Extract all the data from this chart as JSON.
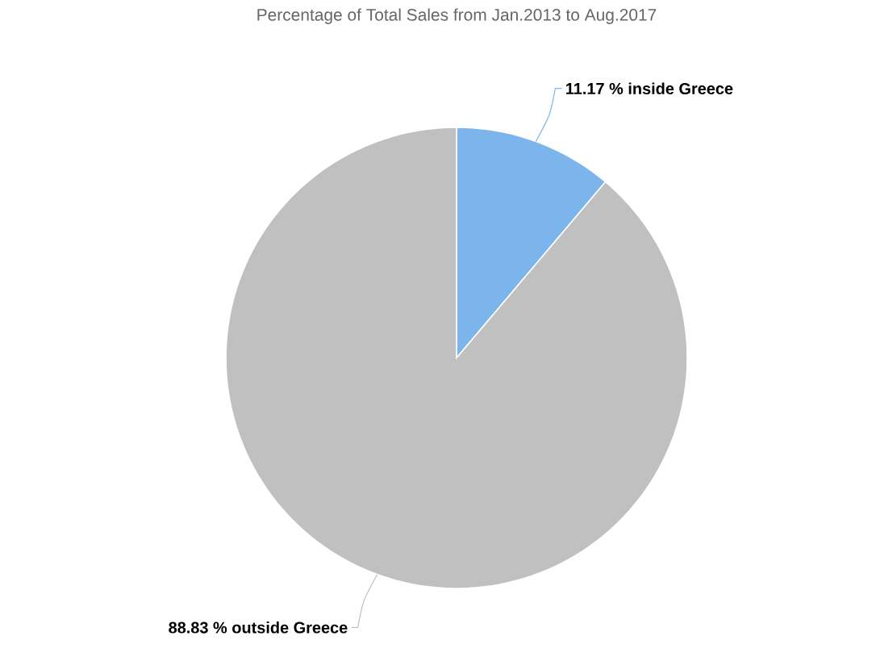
{
  "chart_data": {
    "type": "pie",
    "title": "Percentage of Total Sales from Jan.2013 to Aug.2017",
    "categories": [
      "inside Greece",
      "outside Greece"
    ],
    "values": [
      11.17,
      88.83
    ],
    "value_labels": [
      "11.17 %",
      "88.83 %"
    ],
    "colors": [
      "#7cb5ec",
      "#c0c0c0"
    ]
  }
}
